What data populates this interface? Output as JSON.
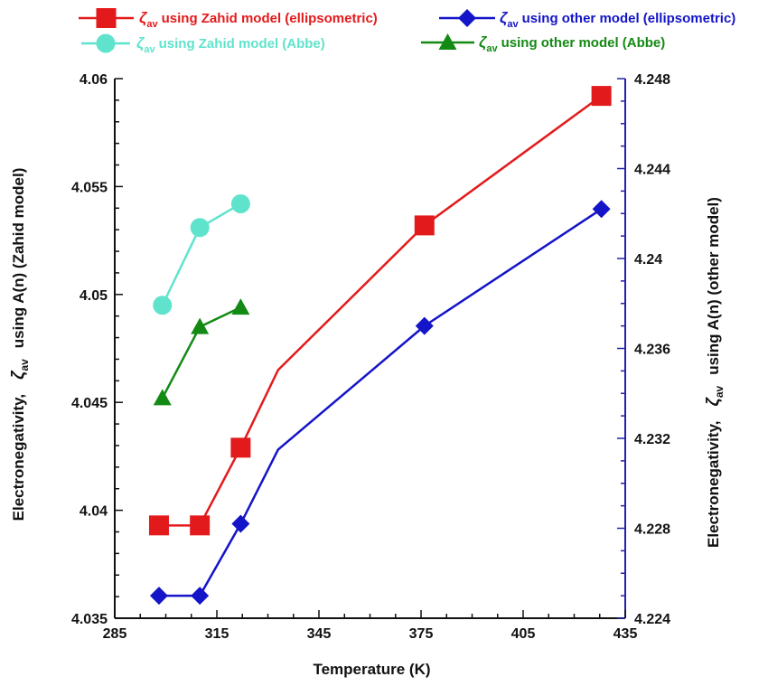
{
  "chart_data": {
    "type": "line",
    "xlabel": "Temperature (K)",
    "ylabel_left": {
      "prefix": "Electronegativity,",
      "symbol": "ζ",
      "sub": "av",
      "suffix": "using A(n) (Zahid model)"
    },
    "ylabel_right": {
      "prefix": "Electronegativity,",
      "symbol": "ζ",
      "sub": "av",
      "suffix": "using A(n) (other model)"
    },
    "xlim": [
      285,
      435
    ],
    "ylim_left": [
      4.035,
      4.06
    ],
    "ylim_right": [
      4.224,
      4.248
    ],
    "xticks": [
      "285",
      "315",
      "345",
      "375",
      "405",
      "435"
    ],
    "yticks_left": [
      "4.035",
      "4.04",
      "4.045",
      "4.05",
      "4.055",
      "4.06"
    ],
    "yticks_right": [
      "4.224",
      "4.228",
      "4.232",
      "4.236",
      "4.24",
      "4.244",
      "4.248"
    ],
    "legend_placement": "top",
    "series": [
      {
        "name": "using Zahid model (ellipsometric)",
        "symbol": "ζ",
        "sub": "av",
        "axis": "left",
        "marker": "square",
        "color": "#e31a1c",
        "x": [
          298,
          310,
          322,
          333,
          376,
          428
        ],
        "y": [
          4.0393,
          4.0393,
          4.0429,
          4.0465,
          4.0532,
          4.0592
        ],
        "markers": [
          true,
          true,
          true,
          false,
          true,
          true
        ]
      },
      {
        "name": "using Zahid model (Abbe)",
        "symbol": "ζ",
        "sub": "av",
        "axis": "left",
        "marker": "circle",
        "color": "#5fe3cc",
        "x": [
          299,
          310,
          322
        ],
        "y": [
          4.0495,
          4.0531,
          4.0542
        ],
        "markers": [
          true,
          true,
          true
        ]
      },
      {
        "name": "using other model (ellipsometric)",
        "symbol": "ζ",
        "sub": "av",
        "axis": "right",
        "marker": "diamond",
        "color": "#1414c8",
        "x": [
          298,
          310,
          322,
          333,
          376,
          428
        ],
        "y": [
          4.225,
          4.225,
          4.2282,
          4.2315,
          4.237,
          4.2422
        ],
        "markers": [
          true,
          true,
          true,
          false,
          true,
          true
        ]
      },
      {
        "name": "using other model (Abbe)",
        "symbol": "ζ",
        "sub": "av",
        "axis": "left",
        "marker": "triangle",
        "color": "#138a13",
        "x": [
          299,
          310,
          322
        ],
        "y": [
          4.0452,
          4.0485,
          4.0494
        ],
        "markers": [
          true,
          true,
          true
        ]
      }
    ]
  }
}
